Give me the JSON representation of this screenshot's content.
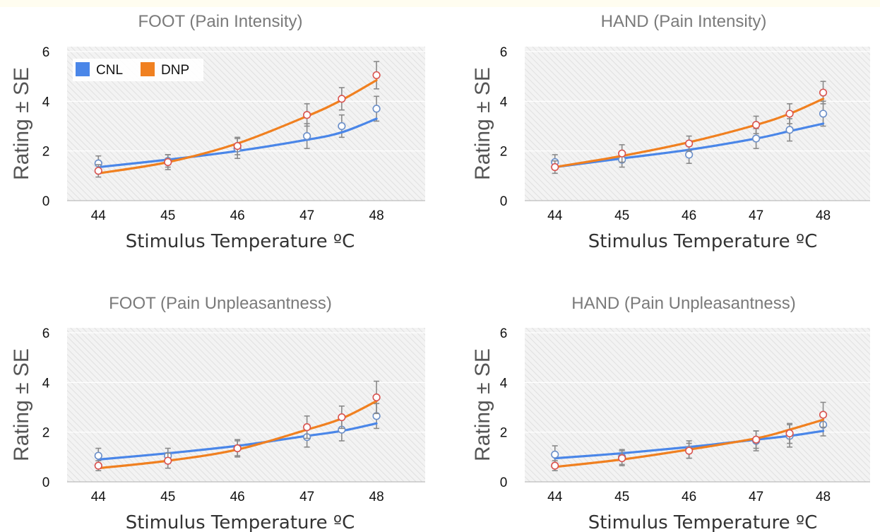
{
  "figure": {
    "legend": [
      {
        "name": "CNL",
        "color": "#4a86e8"
      },
      {
        "name": "DNP",
        "color": "#f08020"
      }
    ]
  },
  "colors": {
    "cnl_line": "#4a86e8",
    "dnp_line": "#f08020",
    "cnl_marker": "#6b8fc9",
    "dnp_marker": "#d9534f",
    "errorbar": "#8a8a8a",
    "plot_bg": "#f2f2f2",
    "hatch": "#d8d8d8"
  },
  "chart_data": [
    {
      "type": "line",
      "title": "FOOT (Pain Intensity)",
      "xlabel": "Stimulus Temperature ºC",
      "ylabel": "Rating ± SE",
      "xticks": [
        44,
        45,
        46,
        47,
        48
      ],
      "yticks": [
        0,
        2,
        4,
        6
      ],
      "xlim": [
        43.55,
        48.7
      ],
      "ylim": [
        0,
        6.2
      ],
      "grid": true,
      "legend_position": "top-left",
      "show_legend": true,
      "series": [
        {
          "name": "CNL",
          "x": [
            44,
            45,
            46,
            47,
            47.5,
            48
          ],
          "y": [
            1.5,
            1.6,
            2.1,
            2.6,
            3.0,
            3.7
          ],
          "se": [
            0.3,
            0.25,
            0.4,
            0.5,
            0.45,
            0.5
          ],
          "fit": [
            1.35,
            1.65,
            2.0,
            2.45,
            2.75,
            3.3
          ]
        },
        {
          "name": "DNP",
          "x": [
            44,
            45,
            46,
            47,
            47.5,
            48
          ],
          "y": [
            1.2,
            1.55,
            2.2,
            3.45,
            4.1,
            5.05
          ],
          "se": [
            0.25,
            0.3,
            0.35,
            0.45,
            0.45,
            0.55
          ],
          "fit": [
            1.1,
            1.55,
            2.3,
            3.4,
            4.05,
            4.85
          ]
        }
      ]
    },
    {
      "type": "line",
      "title": "HAND (Pain Intensity)",
      "xlabel": "Stimulus Temperature ºC",
      "ylabel": "Rating ± SE",
      "xticks": [
        44,
        45,
        46,
        47,
        48
      ],
      "yticks": [
        0,
        2,
        4,
        6
      ],
      "xlim": [
        43.55,
        48.7
      ],
      "ylim": [
        0,
        6.2
      ],
      "grid": true,
      "show_legend": false,
      "series": [
        {
          "name": "CNL",
          "x": [
            44,
            45,
            46,
            47,
            47.5,
            48
          ],
          "y": [
            1.55,
            1.65,
            1.85,
            2.5,
            2.85,
            3.5
          ],
          "se": [
            0.3,
            0.3,
            0.35,
            0.4,
            0.45,
            0.5
          ],
          "fit": [
            1.35,
            1.7,
            2.05,
            2.5,
            2.8,
            3.1
          ]
        },
        {
          "name": "DNP",
          "x": [
            44,
            45,
            46,
            47,
            47.5,
            48
          ],
          "y": [
            1.35,
            1.9,
            2.3,
            3.05,
            3.5,
            4.35
          ],
          "se": [
            0.25,
            0.35,
            0.3,
            0.35,
            0.4,
            0.45
          ],
          "fit": [
            1.35,
            1.8,
            2.35,
            3.05,
            3.5,
            4.1
          ]
        }
      ]
    },
    {
      "type": "line",
      "title": "FOOT (Pain Unpleasantness)",
      "xlabel": "Stimulus Temperature ºC",
      "ylabel": "Rating ± SE",
      "xticks": [
        44,
        45,
        46,
        47,
        48
      ],
      "yticks": [
        0,
        2,
        4,
        6
      ],
      "xlim": [
        43.55,
        48.7
      ],
      "ylim": [
        0,
        6.2
      ],
      "grid": true,
      "show_legend": false,
      "series": [
        {
          "name": "CNL",
          "x": [
            44,
            45,
            46,
            47,
            47.5,
            48
          ],
          "y": [
            1.05,
            1.05,
            1.35,
            1.8,
            2.1,
            2.65
          ],
          "se": [
            0.3,
            0.3,
            0.35,
            0.4,
            0.45,
            0.5
          ],
          "fit": [
            0.9,
            1.15,
            1.45,
            1.85,
            2.05,
            2.35
          ]
        },
        {
          "name": "DNP",
          "x": [
            44,
            45,
            46,
            47,
            47.5,
            48
          ],
          "y": [
            0.65,
            0.85,
            1.35,
            2.2,
            2.6,
            3.4
          ],
          "se": [
            0.2,
            0.3,
            0.3,
            0.45,
            0.45,
            0.65
          ],
          "fit": [
            0.55,
            0.85,
            1.3,
            2.1,
            2.55,
            3.25
          ]
        }
      ]
    },
    {
      "type": "line",
      "title": "HAND (Pain Unpleasantness)",
      "xlabel": "Stimulus Temperature ºC",
      "ylabel": "Rating ± SE",
      "xticks": [
        44,
        45,
        46,
        47,
        48
      ],
      "yticks": [
        0,
        2,
        4,
        6
      ],
      "xlim": [
        43.55,
        48.7
      ],
      "ylim": [
        0,
        6.2
      ],
      "grid": true,
      "show_legend": false,
      "series": [
        {
          "name": "CNL",
          "x": [
            44,
            45,
            46,
            47,
            47.5,
            48
          ],
          "y": [
            1.1,
            1.0,
            1.3,
            1.65,
            1.85,
            2.3
          ],
          "se": [
            0.35,
            0.3,
            0.35,
            0.4,
            0.45,
            0.45
          ],
          "fit": [
            0.95,
            1.15,
            1.4,
            1.7,
            1.85,
            2.05
          ]
        },
        {
          "name": "DNP",
          "x": [
            44,
            45,
            46,
            47,
            47.5,
            48
          ],
          "y": [
            0.65,
            0.95,
            1.25,
            1.7,
            1.95,
            2.7
          ],
          "se": [
            0.2,
            0.3,
            0.3,
            0.35,
            0.4,
            0.5
          ],
          "fit": [
            0.6,
            0.9,
            1.3,
            1.75,
            2.1,
            2.5
          ]
        }
      ]
    }
  ]
}
